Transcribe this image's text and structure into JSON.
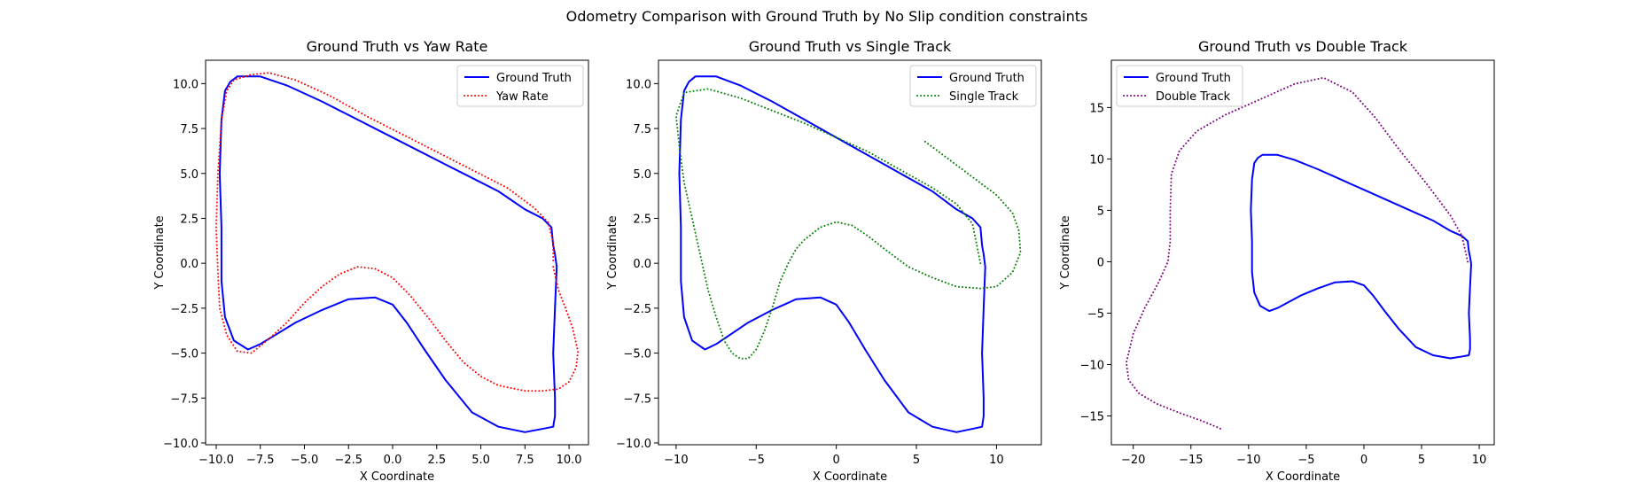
{
  "figure": {
    "suptitle": "Odometry Comparison with Ground Truth by No Slip condition constraints"
  },
  "chart_data": [
    {
      "type": "line",
      "title": "Ground Truth vs Yaw Rate",
      "xlabel": "X Coordinate",
      "ylabel": "Y Coordinate",
      "xlim": [
        -10.6,
        11.1
      ],
      "ylim": [
        -10.1,
        11.3
      ],
      "xticks": [
        -10.0,
        -7.5,
        -5.0,
        -2.5,
        0.0,
        2.5,
        5.0,
        7.5,
        10.0
      ],
      "yticks": [
        -10.0,
        -7.5,
        -5.0,
        -2.5,
        0.0,
        2.5,
        5.0,
        7.5,
        10.0
      ],
      "tick_decimals": 1,
      "legend": "top-right",
      "grid": false,
      "series": [
        {
          "name": "Ground Truth",
          "color": "#0000ff",
          "style": "solid",
          "x": [
            9.3,
            9.2,
            9.1,
            9.2,
            9.2,
            9.1,
            8.6,
            7.5,
            6.0,
            4.5,
            3.0,
            1.8,
            0.8,
            0.0,
            -1.0,
            -2.5,
            -4.0,
            -5.5,
            -6.5,
            -7.5,
            -8.2,
            -9.0,
            -9.5,
            -9.7,
            -9.7,
            -9.8,
            -9.7,
            -9.5,
            -9.2,
            -8.8,
            -7.5,
            -6.0,
            -4.0,
            -2.0,
            0.0,
            2.0,
            4.0,
            6.0,
            7.5,
            8.5,
            9.0,
            9.1,
            9.2,
            9.3
          ],
          "y": [
            -0.2,
            -2.5,
            -5.0,
            -7.5,
            -8.5,
            -9.1,
            -9.2,
            -9.4,
            -9.1,
            -8.3,
            -6.5,
            -4.8,
            -3.3,
            -2.3,
            -1.9,
            -2.0,
            -2.6,
            -3.3,
            -3.9,
            -4.5,
            -4.8,
            -4.3,
            -3.0,
            -1.0,
            2.0,
            5.0,
            8.0,
            9.6,
            10.1,
            10.4,
            10.4,
            9.9,
            9.0,
            8.0,
            7.0,
            6.0,
            5.0,
            4.0,
            3.0,
            2.5,
            2.0,
            1.0,
            0.5,
            -0.2
          ]
        },
        {
          "name": "Yaw Rate",
          "color": "#ff0000",
          "style": "dotted",
          "x": [
            9.1,
            9.4,
            9.8,
            10.2,
            10.5,
            10.4,
            10.0,
            9.4,
            8.5,
            7.5,
            6.0,
            5.0,
            4.0,
            3.0,
            2.0,
            1.0,
            0.0,
            -1.0,
            -2.0,
            -3.0,
            -4.0,
            -5.0,
            -6.0,
            -7.0,
            -8.0,
            -8.8,
            -9.4,
            -9.8,
            -9.9,
            -10.0,
            -9.9,
            -9.7,
            -9.4,
            -9.0,
            -8.0,
            -7.0,
            -5.5,
            -3.5,
            -1.5,
            0.5,
            2.5,
            4.5,
            6.5,
            8.0,
            8.8,
            9.1,
            9.1
          ],
          "y": [
            -0.2,
            -1.5,
            -2.5,
            -3.6,
            -4.9,
            -5.8,
            -6.6,
            -7.0,
            -7.1,
            -7.1,
            -6.8,
            -6.3,
            -5.5,
            -4.3,
            -3.0,
            -1.8,
            -0.8,
            -0.3,
            -0.2,
            -0.6,
            -1.3,
            -2.2,
            -3.3,
            -4.2,
            -5.0,
            -4.9,
            -4.0,
            -2.5,
            -0.5,
            2.0,
            5.0,
            8.0,
            9.6,
            10.2,
            10.5,
            10.6,
            10.2,
            9.3,
            8.2,
            7.2,
            6.2,
            5.2,
            4.2,
            3.1,
            2.3,
            1.2,
            0.0
          ]
        }
      ]
    },
    {
      "type": "line",
      "title": "Ground Truth vs Single Track",
      "xlabel": "X Coordinate",
      "ylabel": "Y Coordinate",
      "xlim": [
        -11.1,
        12.8
      ],
      "ylim": [
        -10.1,
        11.3
      ],
      "xticks": [
        -10,
        -5,
        0,
        5,
        10
      ],
      "yticks": [
        -10.0,
        -7.5,
        -5.0,
        -2.5,
        0.0,
        2.5,
        5.0,
        7.5,
        10.0
      ],
      "tick_decimals_x": 0,
      "tick_decimals_y": 1,
      "legend": "top-right",
      "grid": false,
      "series": [
        {
          "name": "Ground Truth",
          "color": "#0000ff",
          "style": "solid",
          "x": [
            9.3,
            9.2,
            9.1,
            9.2,
            9.2,
            9.1,
            8.6,
            7.5,
            6.0,
            4.5,
            3.0,
            1.8,
            0.8,
            0.0,
            -1.0,
            -2.5,
            -4.0,
            -5.5,
            -6.5,
            -7.5,
            -8.2,
            -9.0,
            -9.5,
            -9.7,
            -9.7,
            -9.8,
            -9.7,
            -9.5,
            -9.2,
            -8.8,
            -7.5,
            -6.0,
            -4.0,
            -2.0,
            0.0,
            2.0,
            4.0,
            6.0,
            7.5,
            8.5,
            9.0,
            9.1,
            9.2,
            9.3
          ],
          "y": [
            -0.2,
            -2.5,
            -5.0,
            -7.5,
            -8.5,
            -9.1,
            -9.2,
            -9.4,
            -9.1,
            -8.3,
            -6.5,
            -4.8,
            -3.3,
            -2.3,
            -1.9,
            -2.0,
            -2.6,
            -3.3,
            -3.9,
            -4.5,
            -4.8,
            -4.3,
            -3.0,
            -1.0,
            2.0,
            5.0,
            8.0,
            9.6,
            10.1,
            10.4,
            10.4,
            9.9,
            9.0,
            8.0,
            7.0,
            6.0,
            5.0,
            4.0,
            3.0,
            2.5,
            2.0,
            1.0,
            0.5,
            -0.2
          ]
        },
        {
          "name": "Single Track",
          "color": "#008000",
          "style": "dotted",
          "x": [
            9.0,
            8.5,
            7.5,
            6.0,
            4.0,
            2.0,
            0.0,
            -2.0,
            -4.0,
            -6.0,
            -8.0,
            -9.5,
            -10.0,
            -9.8,
            -9.5,
            -9.0,
            -8.5,
            -8.0,
            -7.5,
            -7.0,
            -6.5,
            -6.0,
            -5.5,
            -5.0,
            -4.5,
            -4.0,
            -3.5,
            -3.0,
            -2.5,
            -2.0,
            -1.0,
            0.0,
            1.0,
            2.0,
            3.0,
            4.5,
            6.0,
            7.5,
            9.0,
            10.0,
            11.0,
            11.5,
            11.4,
            11.0,
            10.0,
            8.5,
            7.0,
            5.5
          ],
          "y": [
            0.0,
            2.2,
            3.3,
            4.2,
            5.2,
            6.2,
            7.0,
            7.8,
            8.5,
            9.2,
            9.7,
            9.5,
            8.2,
            6.5,
            4.5,
            2.5,
            0.5,
            -1.5,
            -3.0,
            -4.3,
            -5.0,
            -5.3,
            -5.3,
            -4.8,
            -3.8,
            -2.5,
            -1.0,
            0.0,
            0.8,
            1.3,
            2.0,
            2.3,
            2.1,
            1.5,
            0.8,
            -0.2,
            -0.8,
            -1.3,
            -1.4,
            -1.3,
            -0.5,
            0.6,
            1.8,
            2.8,
            3.8,
            4.8,
            5.8,
            6.8
          ]
        }
      ]
    },
    {
      "type": "line",
      "title": "Ground Truth vs Double Track",
      "xlabel": "X Coordinate",
      "ylabel": "Y Coordinate",
      "xlim": [
        -21.9,
        11.3
      ],
      "ylim": [
        -17.8,
        19.6
      ],
      "xticks": [
        -20,
        -15,
        -10,
        -5,
        0,
        5,
        10
      ],
      "yticks": [
        -15,
        -10,
        -5,
        0,
        5,
        10,
        15
      ],
      "tick_decimals": 0,
      "legend": "top-left",
      "grid": false,
      "series": [
        {
          "name": "Ground Truth",
          "color": "#0000ff",
          "style": "solid",
          "x": [
            9.3,
            9.2,
            9.1,
            9.2,
            9.2,
            9.1,
            8.6,
            7.5,
            6.0,
            4.5,
            3.0,
            1.8,
            0.8,
            0.0,
            -1.0,
            -2.5,
            -4.0,
            -5.5,
            -6.5,
            -7.5,
            -8.2,
            -9.0,
            -9.5,
            -9.7,
            -9.7,
            -9.8,
            -9.7,
            -9.5,
            -9.2,
            -8.8,
            -7.5,
            -6.0,
            -4.0,
            -2.0,
            0.0,
            2.0,
            4.0,
            6.0,
            7.5,
            8.5,
            9.0,
            9.1,
            9.2,
            9.3
          ],
          "y": [
            -0.2,
            -2.5,
            -5.0,
            -7.5,
            -8.5,
            -9.1,
            -9.2,
            -9.4,
            -9.1,
            -8.3,
            -6.5,
            -4.8,
            -3.3,
            -2.3,
            -1.9,
            -2.0,
            -2.6,
            -3.3,
            -3.9,
            -4.5,
            -4.8,
            -4.3,
            -3.0,
            -1.0,
            2.0,
            5.0,
            8.0,
            9.6,
            10.1,
            10.4,
            10.4,
            9.9,
            9.0,
            8.0,
            7.0,
            6.0,
            5.0,
            4.0,
            3.0,
            2.5,
            2.0,
            1.0,
            0.5,
            -0.2
          ]
        },
        {
          "name": "Double Track",
          "color": "#800080",
          "style": "dotted",
          "x": [
            9.0,
            8.5,
            7.5,
            5.5,
            3.0,
            1.0,
            -1.0,
            -3.5,
            -6.0,
            -9.0,
            -12.0,
            -14.5,
            -16.0,
            -16.7,
            -16.8,
            -16.8,
            -17.0,
            -17.8,
            -19.0,
            -20.0,
            -20.6,
            -20.4,
            -19.5,
            -18.0,
            -16.0,
            -14.0,
            -12.3
          ],
          "y": [
            0.0,
            2.5,
            4.5,
            7.5,
            11.0,
            14.0,
            16.5,
            17.9,
            17.3,
            15.8,
            14.3,
            12.7,
            10.8,
            8.5,
            5.0,
            2.0,
            0.0,
            -2.0,
            -4.5,
            -7.0,
            -9.8,
            -11.5,
            -12.8,
            -13.8,
            -14.7,
            -15.5,
            -16.3
          ]
        }
      ]
    }
  ]
}
